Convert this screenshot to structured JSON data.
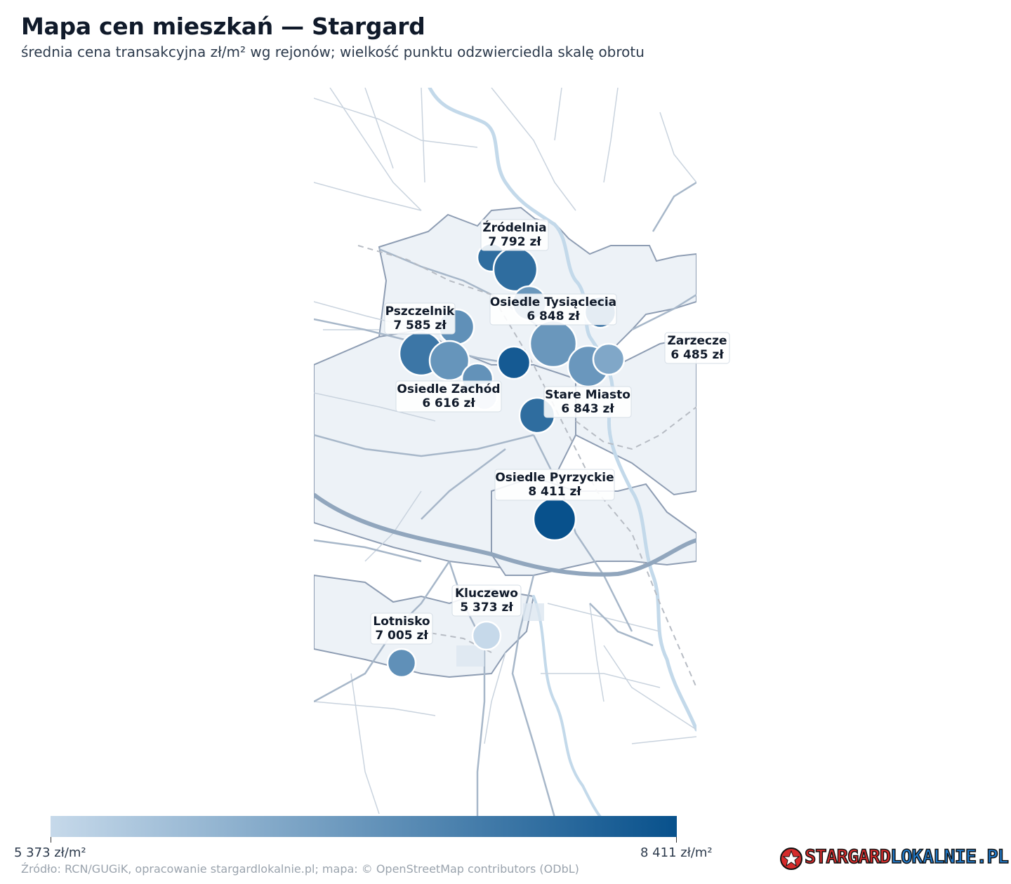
{
  "title": "Mapa cen mieszkań — Stargard",
  "subtitle": "średnia cena transakcyjna zł/m² wg rejonów; wielkość punktu odzwierciedla skalę obrotu",
  "colorbar": {
    "min_label": "5 373 zł/m²",
    "max_label": "8 411 zł/m²",
    "min_value": 5373,
    "max_value": 8411,
    "color_low": "#c6d9ea",
    "color_high": "#08518c"
  },
  "source": "Źródło: RCN/GUGiK, opracowanie stargardlokalnie.pl; mapa: © OpenStreetMap contributors (ODbL)",
  "logo": {
    "part1": "STARGARD",
    "part2": "LOKALNIE.PL"
  },
  "districts": [
    {
      "name": "Źródelnia",
      "price": "7 792 zł",
      "value": 7792
    },
    {
      "name": "Osiedle Tysiąclecia",
      "price": "6 848 zł",
      "value": 6848
    },
    {
      "name": "Pszczelnik",
      "price": "7 585 zł",
      "value": 7585
    },
    {
      "name": "Zarzecze",
      "price": "6 485 zł",
      "value": 6485
    },
    {
      "name": "Osiedle Zachód",
      "price": "6 616 zł",
      "value": 6616
    },
    {
      "name": "Stare Miasto",
      "price": "6 843 zł",
      "value": 6843
    },
    {
      "name": "Osiedle Pyrzyckie",
      "price": "8 411 zł",
      "value": 8411
    },
    {
      "name": "Kluczewo",
      "price": "5 373 zł",
      "value": 5373
    },
    {
      "name": "Lotnisko",
      "price": "7 005 zł",
      "value": 7005
    }
  ]
}
